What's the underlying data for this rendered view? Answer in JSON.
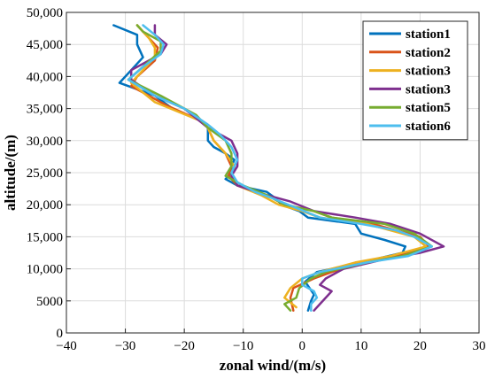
{
  "chart_data": {
    "type": "line",
    "xlabel": "zonal wind/(m/s)",
    "ylabel": "altitude/(m)",
    "xlim": [
      -40,
      30
    ],
    "ylim": [
      0,
      50000
    ],
    "xticks": [
      -40,
      -30,
      -20,
      -10,
      0,
      10,
      20,
      30
    ],
    "xtick_labels": [
      "−40",
      "−30",
      "−20",
      "−10",
      "0",
      "10",
      "20",
      "30"
    ],
    "yticks": [
      0,
      5000,
      10000,
      15000,
      20000,
      25000,
      30000,
      35000,
      40000,
      45000,
      50000
    ],
    "ytick_labels": [
      "0",
      "5000",
      "10,000",
      "15,000",
      "20,000",
      "25,000",
      "30,000",
      "35,000",
      "40,000",
      "45,000",
      "50,000"
    ],
    "grid": true,
    "legend_position": "top-right",
    "series": [
      {
        "name": "station1",
        "color": "#0072BD",
        "points": [
          [
            1.0,
            3500
          ],
          [
            1.5,
            5000
          ],
          [
            2.0,
            6000
          ],
          [
            0.5,
            8000
          ],
          [
            2.5,
            9500
          ],
          [
            10,
            11000
          ],
          [
            17,
            12500
          ],
          [
            17.5,
            13500
          ],
          [
            14,
            14500
          ],
          [
            10,
            15500
          ],
          [
            9,
            17000
          ],
          [
            1,
            18000
          ],
          [
            -0.5,
            19000
          ],
          [
            -3.5,
            20000
          ],
          [
            -4.5,
            21000
          ],
          [
            -6,
            22000
          ],
          [
            -11,
            23000
          ],
          [
            -13,
            24000
          ],
          [
            -12,
            25000
          ],
          [
            -12,
            26000
          ],
          [
            -11.5,
            27000
          ],
          [
            -13,
            28000
          ],
          [
            -15,
            29000
          ],
          [
            -16,
            30000
          ],
          [
            -16,
            32000
          ],
          [
            -17,
            33000
          ],
          [
            -22,
            35000
          ],
          [
            -25,
            37000
          ],
          [
            -31,
            39000
          ],
          [
            -29,
            41000
          ],
          [
            -27,
            43000
          ],
          [
            -28,
            45000
          ],
          [
            -28,
            46500
          ],
          [
            -32,
            48000
          ]
        ]
      },
      {
        "name": "station2",
        "color": "#D95319",
        "points": [
          [
            -1.5,
            3500
          ],
          [
            -2,
            5500
          ],
          [
            -1.5,
            7000
          ],
          [
            2,
            8500
          ],
          [
            5,
            9500
          ],
          [
            10,
            11000
          ],
          [
            16,
            12000
          ],
          [
            21.5,
            13500
          ],
          [
            20,
            15000
          ],
          [
            16,
            16000
          ],
          [
            12,
            17000
          ],
          [
            5,
            18000
          ],
          [
            2,
            19000
          ],
          [
            -3,
            20000
          ],
          [
            -6,
            21500
          ],
          [
            -11,
            23000
          ],
          [
            -12.5,
            24500
          ],
          [
            -12,
            26000
          ],
          [
            -13,
            28000
          ],
          [
            -15,
            30000
          ],
          [
            -16,
            32000
          ],
          [
            -17,
            33000
          ],
          [
            -23,
            35500
          ],
          [
            -29,
            38500
          ],
          [
            -28,
            40000
          ],
          [
            -25,
            42500
          ],
          [
            -24.5,
            44500
          ],
          [
            -26,
            46000
          ],
          [
            -28,
            48000
          ]
        ]
      },
      {
        "name": "station3",
        "color": "#EDB120",
        "points": [
          [
            -1,
            4000
          ],
          [
            -3,
            5500
          ],
          [
            -2,
            7000
          ],
          [
            0,
            8500
          ],
          [
            3,
            9500
          ],
          [
            9,
            11000
          ],
          [
            15,
            12000
          ],
          [
            21,
            13500
          ],
          [
            19,
            15000
          ],
          [
            15,
            16000
          ],
          [
            11,
            17000
          ],
          [
            3,
            18000
          ],
          [
            0,
            19000
          ],
          [
            -4,
            20000
          ],
          [
            -7,
            21500
          ],
          [
            -11,
            23000
          ],
          [
            -12,
            24500
          ],
          [
            -11.5,
            26000
          ],
          [
            -13,
            28000
          ],
          [
            -15,
            30000
          ],
          [
            -16,
            32000
          ],
          [
            -17,
            33000
          ],
          [
            -25,
            36000
          ],
          [
            -29,
            39000
          ],
          [
            -27,
            41000
          ],
          [
            -25,
            43000
          ],
          [
            -25,
            44500
          ],
          [
            -26,
            46000
          ],
          [
            -28,
            48000
          ]
        ]
      },
      {
        "name": "station3",
        "color": "#7E2F8E",
        "points": [
          [
            2,
            3500
          ],
          [
            3,
            4500
          ],
          [
            5,
            6500
          ],
          [
            3,
            7500
          ],
          [
            4,
            8500
          ],
          [
            7,
            10000
          ],
          [
            14,
            11500
          ],
          [
            20,
            12500
          ],
          [
            24,
            13500
          ],
          [
            20,
            15500
          ],
          [
            15,
            17000
          ],
          [
            9,
            18000
          ],
          [
            2,
            19000
          ],
          [
            -2,
            20500
          ],
          [
            -6,
            21500
          ],
          [
            -11,
            23000
          ],
          [
            -12,
            24500
          ],
          [
            -11,
            26000
          ],
          [
            -11,
            28000
          ],
          [
            -12,
            30000
          ],
          [
            -16,
            32000
          ],
          [
            -20,
            35000
          ],
          [
            -25,
            37000
          ],
          [
            -29,
            39500
          ],
          [
            -29,
            41000
          ],
          [
            -24,
            43500
          ],
          [
            -23,
            45000
          ],
          [
            -25,
            46500
          ],
          [
            -25,
            48000
          ]
        ]
      },
      {
        "name": "station5",
        "color": "#77AC30",
        "points": [
          [
            -2,
            3500
          ],
          [
            -3,
            4500
          ],
          [
            -1,
            5500
          ],
          [
            -0.5,
            7000
          ],
          [
            1.5,
            8500
          ],
          [
            4,
            9500
          ],
          [
            11,
            11000
          ],
          [
            17,
            12000
          ],
          [
            22,
            13500
          ],
          [
            19,
            15500
          ],
          [
            14,
            17000
          ],
          [
            5,
            18000
          ],
          [
            2,
            19000
          ],
          [
            -3,
            20000
          ],
          [
            -6,
            21500
          ],
          [
            -10,
            23000
          ],
          [
            -13,
            24500
          ],
          [
            -12,
            26000
          ],
          [
            -12,
            28000
          ],
          [
            -13,
            30000
          ],
          [
            -16,
            32000
          ],
          [
            -18,
            34000
          ],
          [
            -24,
            37000
          ],
          [
            -29.5,
            39500
          ],
          [
            -27,
            41500
          ],
          [
            -24,
            44000
          ],
          [
            -24,
            45500
          ],
          [
            -27,
            47000
          ],
          [
            -28,
            48000
          ]
        ]
      },
      {
        "name": "station6",
        "color": "#4DBEEE",
        "points": [
          [
            1.5,
            3500
          ],
          [
            1.5,
            4500
          ],
          [
            2.5,
            5500
          ],
          [
            2,
            6500
          ],
          [
            0,
            7500
          ],
          [
            0,
            8500
          ],
          [
            3,
            9500
          ],
          [
            11,
            11000
          ],
          [
            18,
            12000
          ],
          [
            22,
            13500
          ],
          [
            19,
            15000
          ],
          [
            16,
            16000
          ],
          [
            10,
            17000
          ],
          [
            3,
            18000
          ],
          [
            -1,
            19500
          ],
          [
            -5,
            21000
          ],
          [
            -8,
            22000
          ],
          [
            -11,
            23500
          ],
          [
            -12,
            25000
          ],
          [
            -11,
            27000
          ],
          [
            -12,
            29000
          ],
          [
            -14,
            31000
          ],
          [
            -16,
            32500
          ],
          [
            -20,
            35000
          ],
          [
            -25,
            37000
          ],
          [
            -29.5,
            39500
          ],
          [
            -27,
            41500
          ],
          [
            -24,
            43500
          ],
          [
            -23.5,
            45000
          ],
          [
            -25,
            46500
          ],
          [
            -27,
            48000
          ]
        ]
      }
    ]
  }
}
